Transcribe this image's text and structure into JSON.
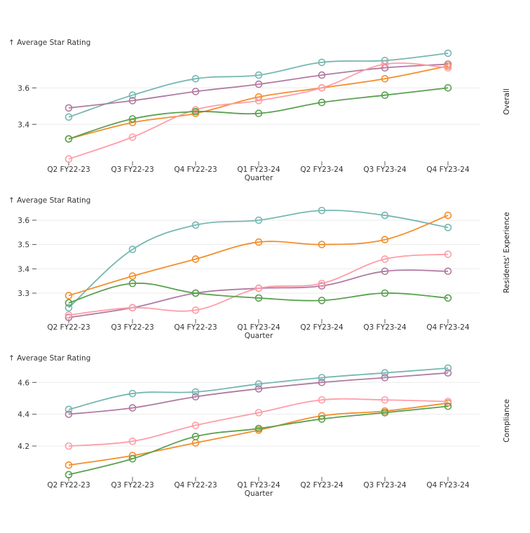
{
  "chart_data": [
    {
      "type": "line",
      "title": "",
      "facet_label": "Overall",
      "ylabel": "↑ Average Star Rating",
      "xlabel": "Quarter",
      "ylim": [
        3.2,
        3.82
      ],
      "yticks": [
        3.4,
        3.6
      ],
      "grid": true,
      "categories": [
        "Q2 FY22-23",
        "Q3 FY22-23",
        "Q4 FY22-23",
        "Q1 FY23-24",
        "Q2 FY23-24",
        "Q3 FY23-24",
        "Q4 FY23-24"
      ],
      "series": [
        {
          "name": "series-teal",
          "color": "#76b7b2",
          "values": [
            3.44,
            3.56,
            3.65,
            3.67,
            3.74,
            3.75,
            3.79
          ]
        },
        {
          "name": "series-purple",
          "color": "#b07aa1",
          "values": [
            3.49,
            3.53,
            3.58,
            3.62,
            3.67,
            3.71,
            3.73
          ]
        },
        {
          "name": "series-orange",
          "color": "#f28e2b",
          "values": [
            3.32,
            3.41,
            3.46,
            3.55,
            3.6,
            3.65,
            3.72
          ]
        },
        {
          "name": "series-pink",
          "color": "#ff9da7",
          "values": [
            3.21,
            3.33,
            3.48,
            3.53,
            3.6,
            3.73,
            3.71
          ]
        },
        {
          "name": "series-green",
          "color": "#59a14f",
          "values": [
            3.32,
            3.43,
            3.47,
            3.46,
            3.52,
            3.56,
            3.6
          ]
        }
      ]
    },
    {
      "type": "line",
      "title": "",
      "facet_label": "Residents' Experience",
      "ylabel": "↑ Average Star Rating",
      "xlabel": "Quarter",
      "ylim": [
        3.2,
        3.65
      ],
      "yticks": [
        3.3,
        3.4,
        3.5,
        3.6
      ],
      "grid": true,
      "categories": [
        "Q2 FY22-23",
        "Q3 FY22-23",
        "Q4 FY22-23",
        "Q1 FY23-24",
        "Q2 FY23-24",
        "Q3 FY23-24",
        "Q4 FY23-24"
      ],
      "series": [
        {
          "name": "series-teal",
          "color": "#76b7b2",
          "values": [
            3.24,
            3.48,
            3.58,
            3.6,
            3.64,
            3.62,
            3.57
          ]
        },
        {
          "name": "series-purple",
          "color": "#b07aa1",
          "values": [
            3.2,
            3.24,
            3.3,
            3.32,
            3.33,
            3.39,
            3.39
          ]
        },
        {
          "name": "series-orange",
          "color": "#f28e2b",
          "values": [
            3.29,
            3.37,
            3.44,
            3.51,
            3.5,
            3.52,
            3.62
          ]
        },
        {
          "name": "series-pink",
          "color": "#ff9da7",
          "values": [
            3.21,
            3.24,
            3.23,
            3.32,
            3.34,
            3.44,
            3.46
          ]
        },
        {
          "name": "series-green",
          "color": "#59a14f",
          "values": [
            3.26,
            3.34,
            3.3,
            3.28,
            3.27,
            3.3,
            3.28
          ]
        }
      ]
    },
    {
      "type": "line",
      "title": "",
      "facet_label": "Compliance",
      "ylabel": "↑ Average Star Rating",
      "xlabel": "Quarter",
      "ylim": [
        4.0,
        4.71
      ],
      "yticks": [
        4.2,
        4.4,
        4.6
      ],
      "grid": true,
      "categories": [
        "Q2 FY22-23",
        "Q3 FY22-23",
        "Q4 FY22-23",
        "Q1 FY23-24",
        "Q2 FY23-24",
        "Q3 FY23-24",
        "Q4 FY23-24"
      ],
      "series": [
        {
          "name": "series-teal",
          "color": "#76b7b2",
          "values": [
            4.43,
            4.53,
            4.54,
            4.59,
            4.63,
            4.66,
            4.69
          ]
        },
        {
          "name": "series-purple",
          "color": "#b07aa1",
          "values": [
            4.4,
            4.44,
            4.51,
            4.56,
            4.6,
            4.63,
            4.66
          ]
        },
        {
          "name": "series-orange",
          "color": "#f28e2b",
          "values": [
            4.08,
            4.14,
            4.22,
            4.3,
            4.39,
            4.42,
            4.47
          ]
        },
        {
          "name": "series-pink",
          "color": "#ff9da7",
          "values": [
            4.2,
            4.23,
            4.33,
            4.41,
            4.49,
            4.49,
            4.48
          ]
        },
        {
          "name": "series-green",
          "color": "#59a14f",
          "values": [
            4.02,
            4.12,
            4.26,
            4.31,
            4.37,
            4.41,
            4.45
          ]
        }
      ]
    }
  ]
}
